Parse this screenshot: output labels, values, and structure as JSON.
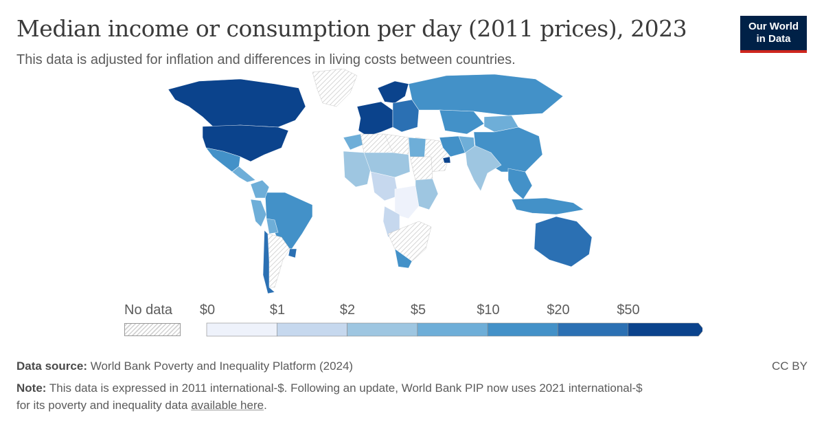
{
  "header": {
    "title": "Median income or consumption per day (2011 prices), 2023",
    "subtitle": "This data is adjusted for inflation and differences in living costs between countries.",
    "logo_line1": "Our World",
    "logo_line2": "in Data"
  },
  "legend": {
    "no_data_label": "No data",
    "bins": [
      "$0",
      "$1",
      "$2",
      "$5",
      "$10",
      "$20",
      "$50"
    ],
    "colors": [
      "#eef2fb",
      "#c6d8ee",
      "#9ec6e1",
      "#6eaed8",
      "#4391c8",
      "#2b70b3",
      "#0b438c"
    ]
  },
  "map": {
    "no_data_pattern_color": "#d5d5d5",
    "countries": [
      {
        "name": "Greenland",
        "bin": null
      },
      {
        "name": "Canada",
        "bin": 6
      },
      {
        "name": "United States",
        "bin": 6
      },
      {
        "name": "Mexico",
        "bin": 4
      },
      {
        "name": "Central America",
        "bin": 3
      },
      {
        "name": "Brazil",
        "bin": 4
      },
      {
        "name": "Colombia",
        "bin": 3
      },
      {
        "name": "Peru",
        "bin": 3
      },
      {
        "name": "Bolivia",
        "bin": 3
      },
      {
        "name": "Argentina",
        "bin": null
      },
      {
        "name": "Chile",
        "bin": 5
      },
      {
        "name": "Uruguay",
        "bin": 5
      },
      {
        "name": "Western Europe",
        "bin": 6
      },
      {
        "name": "Scandinavia",
        "bin": 6
      },
      {
        "name": "Eastern Europe",
        "bin": 5
      },
      {
        "name": "Russia",
        "bin": 4
      },
      {
        "name": "Kazakhstan",
        "bin": 4
      },
      {
        "name": "Mongolia",
        "bin": 3
      },
      {
        "name": "China",
        "bin": 4
      },
      {
        "name": "Middle East",
        "bin": null
      },
      {
        "name": "United Arab Emirates",
        "bin": 6
      },
      {
        "name": "Iran",
        "bin": 4
      },
      {
        "name": "Pakistan",
        "bin": 3
      },
      {
        "name": "India",
        "bin": 2
      },
      {
        "name": "Southeast Asia",
        "bin": 4
      },
      {
        "name": "Indonesia",
        "bin": 4
      },
      {
        "name": "Australia",
        "bin": 5
      },
      {
        "name": "Morocco",
        "bin": 3
      },
      {
        "name": "Algeria",
        "bin": null
      },
      {
        "name": "Libya",
        "bin": null
      },
      {
        "name": "Egypt",
        "bin": 3
      },
      {
        "name": "Sudan",
        "bin": null
      },
      {
        "name": "West Africa",
        "bin": 2
      },
      {
        "name": "Sahel",
        "bin": 2
      },
      {
        "name": "Central Africa",
        "bin": 1
      },
      {
        "name": "DR Congo",
        "bin": 0
      },
      {
        "name": "East Africa",
        "bin": 2
      },
      {
        "name": "Angola",
        "bin": 1
      },
      {
        "name": "Southern Africa",
        "bin": null
      },
      {
        "name": "South Africa",
        "bin": 4
      }
    ]
  },
  "footer": {
    "source_label": "Data source:",
    "source_text": "World Bank Poverty and Inequality Platform (2024)",
    "license": "CC BY",
    "note_label": "Note:",
    "note_text": "This data is expressed in 2011 international-$. Following an update, World Bank PIP now uses 2021 international-$",
    "note_text2": "for its poverty and inequality data",
    "note_link": "available here",
    "note_end": "."
  }
}
